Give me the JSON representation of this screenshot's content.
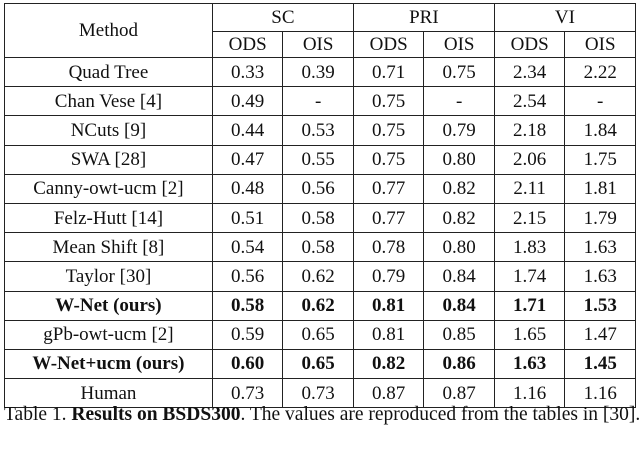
{
  "table": {
    "method_header": "Method",
    "groups": [
      "SC",
      "PRI",
      "VI"
    ],
    "subheaders": [
      "ODS",
      "OIS",
      "ODS",
      "OIS",
      "ODS",
      "OIS"
    ],
    "rows": [
      {
        "method": "Quad Tree",
        "bold": false,
        "values": [
          "0.33",
          "0.39",
          "0.71",
          "0.75",
          "2.34",
          "2.22"
        ]
      },
      {
        "method": "Chan Vese [4]",
        "bold": false,
        "values": [
          "0.49",
          "-",
          "0.75",
          "-",
          "2.54",
          "-"
        ]
      },
      {
        "method": "NCuts [9]",
        "bold": false,
        "values": [
          "0.44",
          "0.53",
          "0.75",
          "0.79",
          "2.18",
          "1.84"
        ]
      },
      {
        "method": "SWA [28]",
        "bold": false,
        "values": [
          "0.47",
          "0.55",
          "0.75",
          "0.80",
          "2.06",
          "1.75"
        ]
      },
      {
        "method": "Canny-owt-ucm [2]",
        "bold": false,
        "values": [
          "0.48",
          "0.56",
          "0.77",
          "0.82",
          "2.11",
          "1.81"
        ]
      },
      {
        "method": "Felz-Hutt [14]",
        "bold": false,
        "values": [
          "0.51",
          "0.58",
          "0.77",
          "0.82",
          "2.15",
          "1.79"
        ]
      },
      {
        "method": "Mean Shift [8]",
        "bold": false,
        "values": [
          "0.54",
          "0.58",
          "0.78",
          "0.80",
          "1.83",
          "1.63"
        ]
      },
      {
        "method": "Taylor [30]",
        "bold": false,
        "values": [
          "0.56",
          "0.62",
          "0.79",
          "0.84",
          "1.74",
          "1.63"
        ]
      },
      {
        "method": "W-Net (ours)",
        "bold": true,
        "values": [
          "0.58",
          "0.62",
          "0.81",
          "0.84",
          "1.71",
          "1.53"
        ]
      },
      {
        "method": "gPb-owt-ucm [2]",
        "bold": false,
        "values": [
          "0.59",
          "0.65",
          "0.81",
          "0.85",
          "1.65",
          "1.47"
        ]
      },
      {
        "method": "W-Net+ucm (ours)",
        "bold": true,
        "values": [
          "0.60",
          "0.65",
          "0.82",
          "0.86",
          "1.63",
          "1.45"
        ]
      },
      {
        "method": "Human",
        "bold": false,
        "values": [
          "0.73",
          "0.73",
          "0.87",
          "0.87",
          "1.16",
          "1.16"
        ]
      }
    ]
  },
  "caption": {
    "label": "Table 1.",
    "title": "Results on BSDS300",
    "text": ". The values are reproduced from the tables in [30]."
  }
}
